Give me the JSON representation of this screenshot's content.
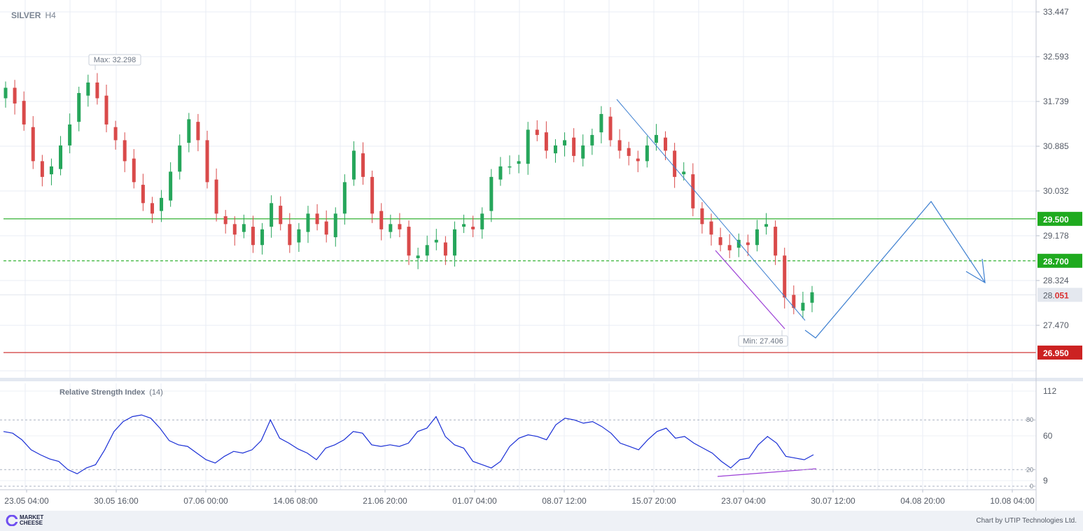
{
  "header": {
    "symbol": "SILVER",
    "timeframe": "H4"
  },
  "chart_data": {
    "type": "candlestick",
    "y_axis_ticks": [
      33.447,
      32.593,
      31.739,
      30.885,
      30.032,
      29.178,
      28.324,
      27.47
    ],
    "x_axis_ticks": [
      "23.05 04:00",
      "30.05 16:00",
      "07.06 00:00",
      "14.06 08:00",
      "21.06 20:00",
      "01.07 04:00",
      "08.07 12:00",
      "15.07 20:00",
      "23.07 04:00",
      "30.07 12:00",
      "04.08 20:00",
      "10.08 04:00"
    ],
    "current_price": {
      "int": "28.",
      "frac": "051",
      "value": 28.051
    },
    "max_label": "Max: 32.298",
    "min_label": "Min: 27.406",
    "levels": [
      {
        "value": 29.5,
        "label": "29.500",
        "color": "#1faa1f",
        "style": "solid"
      },
      {
        "value": 28.7,
        "label": "28.700",
        "color": "#1faa1f",
        "style": "dashed"
      },
      {
        "value": 26.95,
        "label": "26.950",
        "color": "#cc2222",
        "style": "solid"
      }
    ],
    "candle_colors": {
      "up": "#26a65b",
      "down": "#d94a4a"
    },
    "closes": [
      32.0,
      31.7,
      31.3,
      30.6,
      30.3,
      30.5,
      30.9,
      31.3,
      31.9,
      32.1,
      31.8,
      31.3,
      31.0,
      30.6,
      30.2,
      29.8,
      29.6,
      29.9,
      30.4,
      30.9,
      31.4,
      31.0,
      30.2,
      29.6,
      29.4,
      29.2,
      29.4,
      29.0,
      29.3,
      29.8,
      29.4,
      29.0,
      29.3,
      29.6,
      29.4,
      29.2,
      29.6,
      30.2,
      30.8,
      30.3,
      29.6,
      29.3,
      29.4,
      29.3,
      28.8,
      28.8,
      29.0,
      29.1,
      28.8,
      29.3,
      29.4,
      29.3,
      29.6,
      30.3,
      30.5,
      30.5,
      30.6,
      31.2,
      31.1,
      30.8,
      30.9,
      31.0,
      30.7,
      30.9,
      31.1,
      31.5,
      31.0,
      30.8,
      30.7,
      30.6,
      30.9,
      31.1,
      30.8,
      30.3,
      30.4,
      29.7,
      29.4,
      29.2,
      29.0,
      28.9,
      29.1,
      29.0,
      29.3,
      29.4,
      28.8,
      28.0,
      27.8,
      27.9,
      28.1
    ],
    "rsi": {
      "title": "Relative Strength Index",
      "period": "(14)",
      "ticks": [
        "112",
        "60",
        "9"
      ],
      "levels": [
        {
          "label": "80",
          "value": 80
        },
        {
          "label": "20",
          "value": 20
        },
        {
          "label": "0",
          "value": 0
        }
      ],
      "values": [
        66,
        64,
        56,
        44,
        38,
        33,
        30,
        20,
        15,
        22,
        26,
        44,
        66,
        78,
        84,
        86,
        82,
        70,
        55,
        50,
        48,
        40,
        32,
        28,
        36,
        42,
        40,
        44,
        55,
        80,
        58,
        52,
        45,
        40,
        32,
        46,
        50,
        56,
        66,
        64,
        50,
        48,
        50,
        48,
        52,
        66,
        70,
        84,
        60,
        50,
        46,
        30,
        26,
        22,
        30,
        48,
        58,
        62,
        60,
        56,
        74,
        82,
        80,
        76,
        78,
        72,
        64,
        52,
        48,
        44,
        56,
        66,
        70,
        58,
        60,
        52,
        46,
        40,
        30,
        22,
        32,
        34,
        50,
        60,
        52,
        36,
        34,
        32,
        38
      ]
    }
  },
  "footer": {
    "brand_line1": "MARKET",
    "brand_line2": "CHEESE",
    "credit": "Chart by UTIP Technologies Ltd."
  }
}
